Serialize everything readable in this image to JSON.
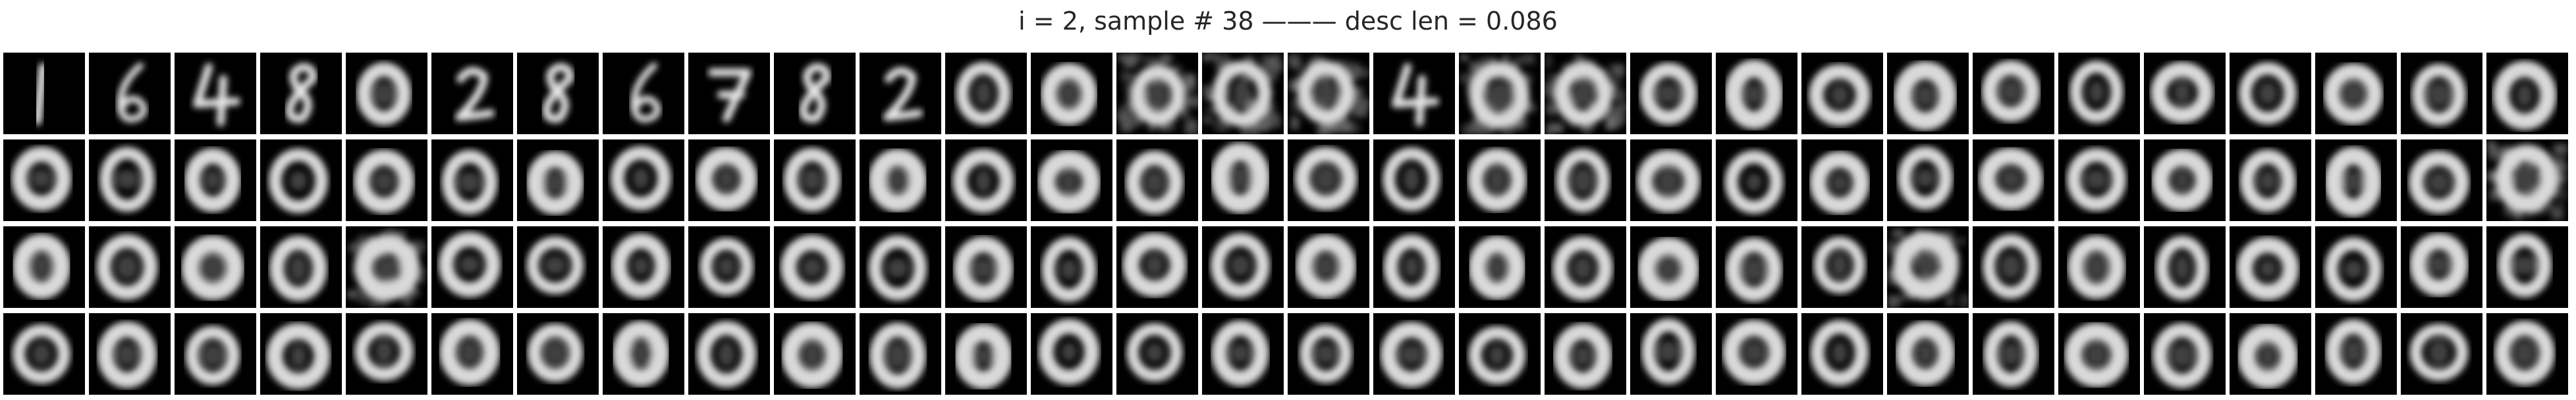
{
  "figure": {
    "title": "i = 2, sample # 38 ——— desc len = 0.086",
    "colormap": "gray",
    "background_color": "#ffffff",
    "panel_background": "#000000"
  },
  "grid": {
    "rows": 4,
    "columns": 30,
    "panels": [
      [
        "1",
        "6",
        "4",
        "8",
        "0",
        "2",
        "8",
        "6",
        "7",
        "8",
        "2",
        "0",
        "0",
        "0-noisy",
        "0-noisy",
        "0-noisy",
        "4",
        "0-noisy",
        "0-noisy",
        "0",
        "0",
        "0",
        "0",
        "0",
        "0",
        "0",
        "0",
        "0",
        "0",
        "0"
      ],
      [
        "0",
        "0",
        "0",
        "0",
        "0",
        "0",
        "0",
        "0",
        "0",
        "0",
        "0",
        "0",
        "0",
        "0",
        "0",
        "0",
        "0",
        "0",
        "0",
        "0",
        "0",
        "0",
        "0",
        "0",
        "0",
        "0",
        "0",
        "0",
        "0",
        "0-noisy"
      ],
      [
        "0",
        "0",
        "0",
        "0",
        "0-noisy",
        "0",
        "0",
        "0",
        "0",
        "0",
        "0",
        "0",
        "0",
        "0",
        "0",
        "0",
        "0",
        "0",
        "0",
        "0",
        "0",
        "0",
        "0-noisy",
        "0",
        "0",
        "0",
        "0",
        "0",
        "0",
        "0"
      ],
      [
        "0",
        "0",
        "0",
        "0",
        "0",
        "0",
        "0",
        "0",
        "0",
        "0",
        "0",
        "0",
        "0",
        "0",
        "0",
        "0",
        "0",
        "0",
        "0",
        "0",
        "0",
        "0",
        "0",
        "0",
        "0",
        "0",
        "0",
        "0",
        "0",
        "0"
      ]
    ]
  }
}
